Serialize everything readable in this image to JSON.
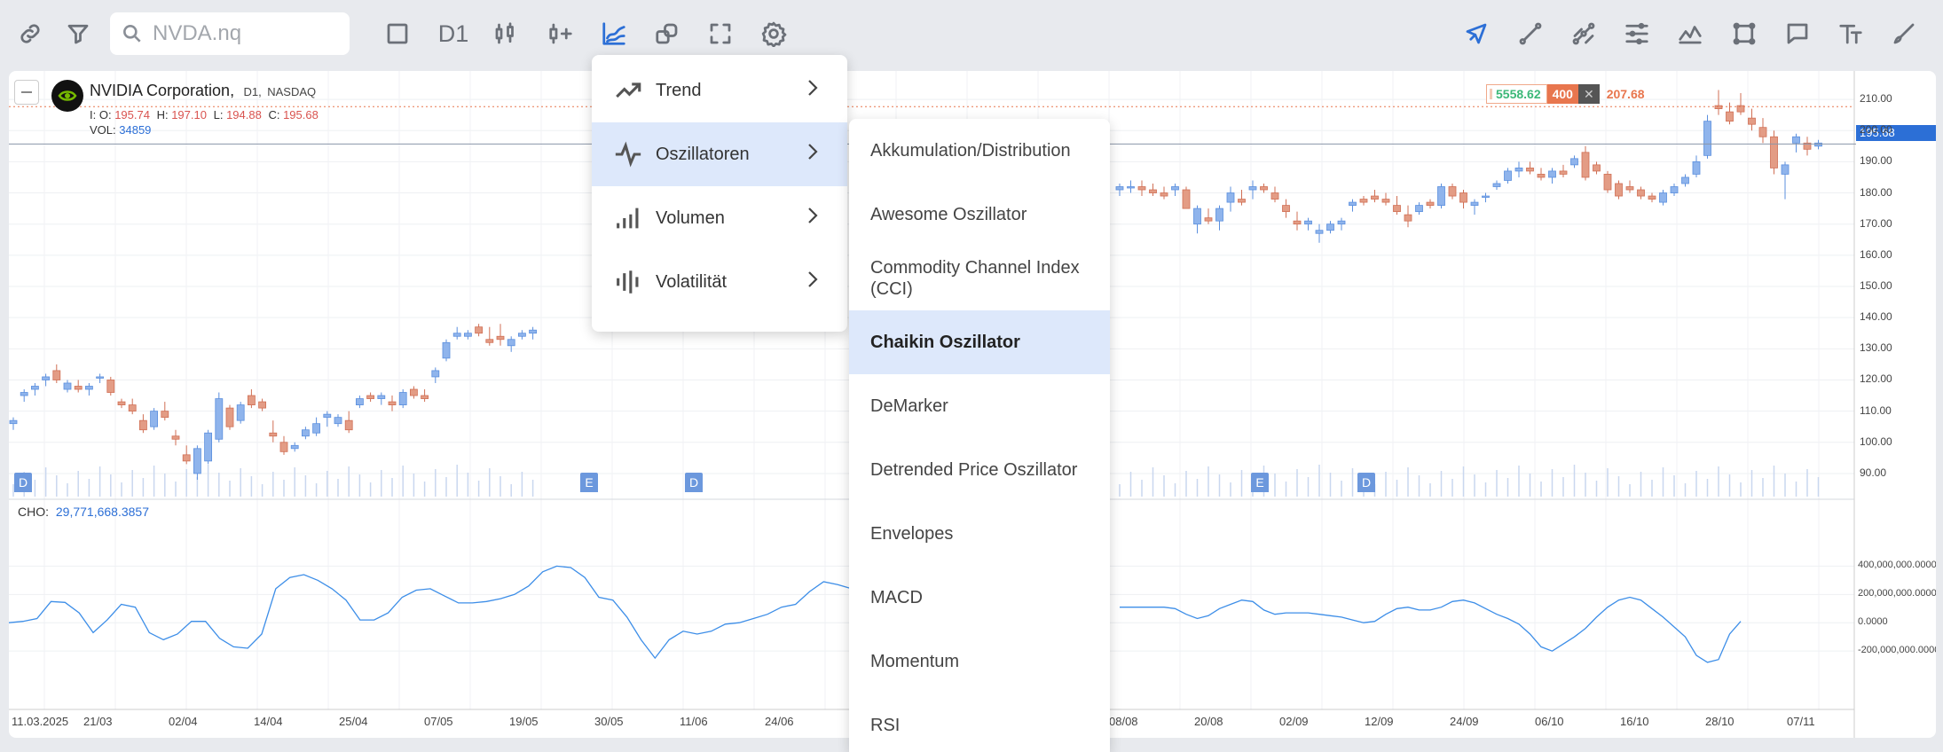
{
  "toolbar": {
    "search_placeholder": "NVDA.nq",
    "timeframe": "D1",
    "left_icons": [
      "link-icon",
      "filter-icon",
      "square-icon",
      "timeframe",
      "candlestick-icon",
      "add-indicator-icon",
      "indicators-icon",
      "shapes-icon",
      "fullscreen-icon",
      "settings-icon"
    ],
    "right_icons": [
      "cursor-icon",
      "line-icon",
      "channel-icon",
      "fib-icon",
      "pattern-icon",
      "rectangle-icon",
      "comment-icon",
      "text-icon",
      "brush-icon"
    ]
  },
  "legend": {
    "name": "NVIDIA Corporation,",
    "timeframe": "D1,",
    "exchange": "NASDAQ",
    "o_label": "I: O:",
    "o": "195.74",
    "h_label": "H:",
    "h": "197.10",
    "l_label": "L:",
    "l": "194.88",
    "c_label": "C:",
    "c": "195.68",
    "vol_label": "VOL:",
    "vol": "34859"
  },
  "order_widget": {
    "buy": "5558.62",
    "qty": "400",
    "sell": "207.68"
  },
  "indicator": {
    "label": "CHO:",
    "value": "29,771,668.3857"
  },
  "price_axis": [
    "210.00",
    "200.00",
    "190.00",
    "180.00",
    "170.00",
    "160.00",
    "150.00",
    "140.00",
    "130.00",
    "120.00",
    "110.00",
    "100.00",
    "90.00"
  ],
  "current_price": "195.68",
  "osc_axis": [
    "400,000,000.0000",
    "200,000,000.0000",
    "0.0000",
    "-200,000,000.0000"
  ],
  "date_axis": [
    "11.03.2025",
    "21/03",
    "02/04",
    "14/04",
    "25/04",
    "07/05",
    "19/05",
    "30/05",
    "11/06",
    "24/06",
    "08/08",
    "20/08",
    "02/09",
    "12/09",
    "24/09",
    "06/10",
    "16/10",
    "28/10",
    "07/11"
  ],
  "events": [
    "D",
    "E",
    "D",
    "E",
    "D"
  ],
  "menu": {
    "items": [
      {
        "label": "Trend",
        "icon": "trend-icon"
      },
      {
        "label": "Oszillatoren",
        "icon": "oscillator-icon"
      },
      {
        "label": "Volumen",
        "icon": "volume-icon"
      },
      {
        "label": "Volatilität",
        "icon": "volatility-icon"
      }
    ],
    "selected": 1
  },
  "submenu": {
    "items": [
      {
        "label": "Akkumulation/Distribution"
      },
      {
        "label": "Awesome Oszillator"
      },
      {
        "label": "Commodity Channel Index (CCI)"
      },
      {
        "label": "Chaikin Oszillator"
      },
      {
        "label": "DeMarker"
      },
      {
        "label": "Detrended Price Oszillator"
      },
      {
        "label": "Envelopes"
      },
      {
        "label": "MACD"
      },
      {
        "label": "Momentum"
      },
      {
        "label": "RSI"
      }
    ],
    "selected": 3
  },
  "chart_data": {
    "type": "candlestick",
    "symbol": "NVDA",
    "price_range": [
      86,
      214
    ],
    "candles": [
      [
        106,
        108,
        104,
        107
      ],
      [
        115,
        117,
        113,
        116
      ],
      [
        117,
        119,
        115,
        118
      ],
      [
        120,
        122,
        118,
        121
      ],
      [
        123,
        125,
        119,
        120
      ],
      [
        117,
        120,
        116,
        119
      ],
      [
        118,
        120,
        116,
        117
      ],
      [
        117,
        119,
        115,
        118
      ],
      [
        121,
        122,
        119,
        121
      ],
      [
        120,
        121,
        115,
        116
      ],
      [
        113,
        114,
        111,
        112
      ],
      [
        112,
        114,
        109,
        110
      ],
      [
        107,
        109,
        103,
        104
      ],
      [
        105,
        111,
        104,
        110
      ],
      [
        110,
        113,
        107,
        108
      ],
      [
        102,
        104,
        99,
        101
      ],
      [
        96,
        99,
        93,
        94
      ],
      [
        90,
        99,
        88,
        98
      ],
      [
        94,
        104,
        93,
        103
      ],
      [
        101,
        116,
        100,
        114
      ],
      [
        111,
        112,
        104,
        105
      ],
      [
        107,
        113,
        106,
        112
      ],
      [
        115,
        117,
        111,
        112
      ],
      [
        113,
        114,
        110,
        111
      ],
      [
        103,
        107,
        100,
        102
      ],
      [
        100,
        102,
        96,
        97
      ],
      [
        98,
        100,
        97,
        99
      ],
      [
        102,
        105,
        101,
        104
      ],
      [
        103,
        108,
        102,
        106
      ],
      [
        108,
        110,
        105,
        109
      ],
      [
        106,
        109,
        105,
        108
      ],
      [
        107,
        110,
        103,
        104
      ],
      [
        112,
        115,
        111,
        114
      ],
      [
        115,
        116,
        113,
        114
      ],
      [
        114,
        116,
        112,
        115
      ],
      [
        113,
        115,
        110,
        112
      ],
      [
        112,
        117,
        111,
        116
      ],
      [
        117,
        118,
        114,
        115
      ],
      [
        115,
        117,
        113,
        114
      ],
      [
        121,
        124,
        119,
        123
      ],
      [
        127,
        133,
        126,
        132
      ],
      [
        134,
        137,
        133,
        135
      ],
      [
        134,
        136,
        133,
        135
      ],
      [
        137,
        138,
        134,
        135
      ],
      [
        133,
        137,
        131,
        132
      ],
      [
        134,
        138,
        131,
        133
      ],
      [
        131,
        134,
        129,
        133
      ],
      [
        134,
        136,
        133,
        135
      ],
      [
        135,
        137,
        133,
        136
      ]
    ],
    "candles_right": [
      [
        181,
        183,
        179,
        182
      ],
      [
        182,
        184,
        180,
        182
      ],
      [
        182,
        184,
        179,
        181
      ],
      [
        181,
        183,
        179,
        180
      ],
      [
        180,
        182,
        178,
        179
      ],
      [
        181,
        183,
        179,
        182
      ],
      [
        181,
        182,
        176,
        175
      ],
      [
        170,
        176,
        167,
        175
      ],
      [
        172,
        175,
        170,
        171
      ],
      [
        171,
        176,
        168,
        175
      ],
      [
        177,
        182,
        174,
        180
      ],
      [
        178,
        181,
        176,
        177
      ],
      [
        181,
        184,
        178,
        182
      ],
      [
        182,
        183,
        180,
        181
      ],
      [
        180,
        182,
        177,
        178
      ],
      [
        176,
        178,
        172,
        174
      ],
      [
        171,
        174,
        168,
        170
      ],
      [
        170,
        172,
        168,
        171
      ],
      [
        167,
        170,
        164,
        168
      ],
      [
        168,
        171,
        167,
        170
      ],
      [
        170,
        172,
        168,
        171
      ],
      [
        176,
        178,
        174,
        177
      ],
      [
        178,
        179,
        176,
        177
      ],
      [
        179,
        181,
        177,
        178
      ],
      [
        178,
        180,
        176,
        177
      ],
      [
        176,
        179,
        173,
        174
      ],
      [
        173,
        176,
        169,
        171
      ],
      [
        174,
        177,
        173,
        176
      ],
      [
        177,
        178,
        175,
        176
      ],
      [
        176,
        183,
        175,
        182
      ],
      [
        182,
        183,
        178,
        179
      ],
      [
        180,
        181,
        175,
        177
      ],
      [
        176,
        178,
        173,
        177
      ],
      [
        179,
        180,
        177,
        179
      ],
      [
        182,
        184,
        181,
        183
      ],
      [
        184,
        188,
        183,
        187
      ],
      [
        187,
        190,
        185,
        188
      ],
      [
        188,
        190,
        186,
        187
      ],
      [
        186,
        188,
        184,
        185
      ],
      [
        185,
        188,
        183,
        187
      ],
      [
        187,
        189,
        185,
        186
      ],
      [
        189,
        192,
        188,
        191
      ],
      [
        193,
        195,
        184,
        185
      ],
      [
        189,
        190,
        186,
        187
      ],
      [
        186,
        187,
        180,
        181
      ],
      [
        183,
        184,
        178,
        179
      ],
      [
        182,
        184,
        180,
        181
      ],
      [
        181,
        182,
        178,
        179
      ],
      [
        179,
        180,
        177,
        178
      ],
      [
        177,
        181,
        176,
        180
      ],
      [
        180,
        183,
        179,
        182
      ],
      [
        183,
        186,
        182,
        185
      ],
      [
        186,
        192,
        185,
        190
      ],
      [
        192,
        205,
        191,
        203
      ],
      [
        208,
        213,
        205,
        207
      ],
      [
        206,
        209,
        202,
        203
      ],
      [
        208,
        212,
        205,
        206
      ],
      [
        204,
        207,
        200,
        202
      ],
      [
        201,
        204,
        196,
        198
      ],
      [
        198,
        200,
        186,
        188
      ],
      [
        186,
        190,
        178,
        189
      ],
      [
        196,
        199,
        193,
        198
      ],
      [
        196,
        198,
        192,
        194
      ],
      [
        195,
        197,
        194,
        196
      ]
    ],
    "oscillator": [
      0,
      0.05,
      0.15,
      0.75,
      0.72,
      0.35,
      -0.35,
      0.1,
      0.65,
      0.55,
      -0.35,
      -0.6,
      -0.4,
      0.05,
      0.05,
      -0.55,
      -0.85,
      -0.9,
      -0.4,
      1.2,
      1.6,
      1.7,
      1.5,
      1.2,
      0.8,
      0.1,
      0.1,
      0.35,
      0.9,
      1.15,
      1.2,
      0.95,
      0.7,
      0.7,
      0.75,
      0.85,
      1.0,
      1.3,
      1.8,
      2.0,
      1.95,
      1.6,
      0.9,
      0.8,
      0.2,
      -0.6,
      -1.25,
      -0.6,
      -0.3,
      -0.4,
      -0.3,
      -0.05,
      0.0,
      0.15,
      0.3,
      0.55,
      0.65,
      1.1,
      1.45,
      1.35,
      1.2,
      0.55,
      0.55,
      0.55,
      0.55,
      0.55,
      0.5,
      0.3,
      0.15,
      0.25,
      0.5,
      0.65,
      0.8,
      0.75,
      0.45,
      0.3,
      0.35,
      0.35,
      0.35,
      0.3,
      0.25,
      0.2,
      0.1,
      0.0,
      0.05,
      0.3,
      0.5,
      0.55,
      0.45,
      0.45,
      0.55,
      0.75,
      0.8,
      0.7,
      0.5,
      0.3,
      0.15,
      -0.05,
      -0.4,
      -0.85,
      -1.0,
      -0.75,
      -0.5,
      -0.2,
      0.2,
      0.55,
      0.8,
      0.9,
      0.8,
      0.5,
      0.2,
      -0.15,
      -0.5,
      -1.15,
      -1.4,
      -1.3,
      -0.4,
      0.05
    ],
    "osc_range": [
      -3,
      4.3
    ]
  }
}
